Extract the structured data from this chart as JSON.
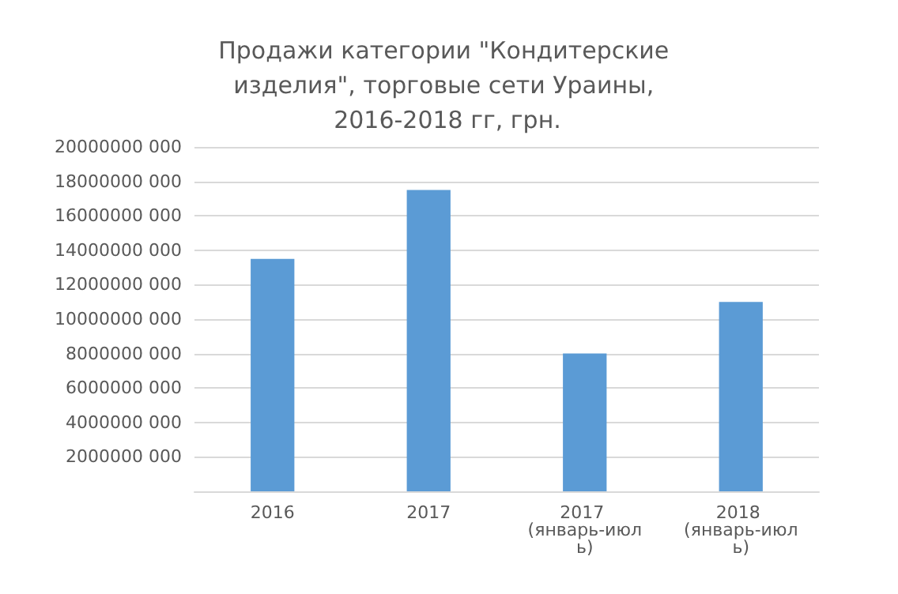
{
  "chart_data": {
    "type": "bar",
    "title": "Продажи категории \"Кондитерские изделия\", торговые сети Ураины, 2016-2018 гг, грн.",
    "categories": [
      "2016",
      "2017",
      "2017 (январь-июль)",
      "2018 (январь-июль)"
    ],
    "values": [
      13500000000,
      17500000000,
      8000000000,
      11000000000
    ],
    "color": "#5b9bd5",
    "ylim": [
      0,
      20000000000
    ],
    "yticks": [
      {
        "value": 0,
        "label": null
      },
      {
        "value": 2000000000,
        "label": "2000000 000"
      },
      {
        "value": 4000000000,
        "label": "4000000 000"
      },
      {
        "value": 6000000000,
        "label": "6000000 000"
      },
      {
        "value": 8000000000,
        "label": "8000000 000"
      },
      {
        "value": 10000000000,
        "label": "10000000 000"
      },
      {
        "value": 12000000000,
        "label": "12000000 000"
      },
      {
        "value": 14000000000,
        "label": "14000000 000"
      },
      {
        "value": 16000000000,
        "label": "16000000 000"
      },
      {
        "value": 18000000000,
        "label": "18000000 000"
      },
      {
        "value": 20000000000,
        "label": "20000000 000"
      }
    ],
    "grid": true
  }
}
